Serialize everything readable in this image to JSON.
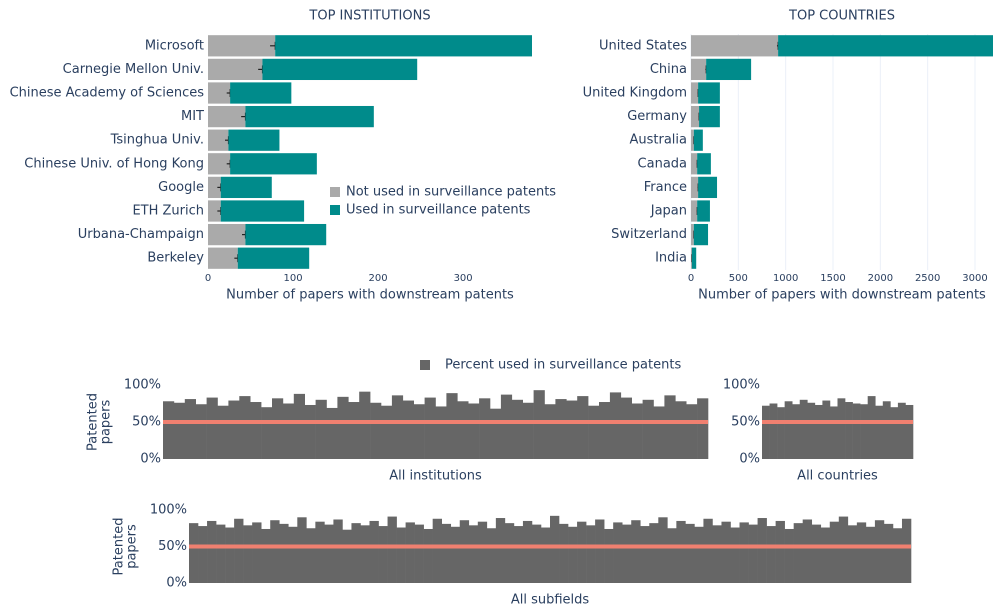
{
  "chart_data": [
    {
      "type": "hbar_stacked",
      "title": "TOP INSTITUTIONS",
      "xlabel": "Number of papers with downstream patents",
      "categories": [
        "Microsoft",
        "Carnegie Mellon Univ.",
        "Chinese Academy of Sciences",
        "MIT",
        "Tsinghua Univ.",
        "Chinese Univ. of Hong Kong",
        "Google",
        "ETH Zurich",
        "Urbana-Champaign",
        "Berkeley"
      ],
      "series": [
        {
          "name": "Not used in surveillance patents",
          "color": "#aaaaaa",
          "values": [
            79,
            64,
            26,
            44,
            24,
            26,
            15,
            15,
            44,
            35
          ],
          "errors": [
            6,
            5,
            4,
            5,
            4,
            4,
            4,
            4,
            4,
            4
          ]
        },
        {
          "name": "Used in surveillance patents",
          "color": "#008b8b",
          "values": [
            302,
            182,
            72,
            151,
            60,
            102,
            60,
            98,
            95,
            84
          ]
        }
      ],
      "xlim": [
        0,
        381
      ],
      "xticks": [
        0,
        100,
        200,
        300
      ],
      "grid": false
    },
    {
      "type": "hbar_stacked",
      "title": "TOP COUNTRIES",
      "xlabel": "Number of papers with downstream patents",
      "categories": [
        "United States",
        "China",
        "United Kingdom",
        "Germany",
        "Australia",
        "Canada",
        "France",
        "Japan",
        "Switzerland",
        "India"
      ],
      "series": [
        {
          "color": "#aaaaaa",
          "values": [
            920,
            160,
            75,
            85,
            30,
            65,
            75,
            65,
            30,
            10
          ],
          "errors": [
            12,
            8,
            5,
            5,
            3,
            4,
            5,
            4,
            3,
            2
          ]
        },
        {
          "color": "#008b8b",
          "values": [
            2270,
            475,
            230,
            220,
            95,
            145,
            200,
            135,
            150,
            45
          ]
        }
      ],
      "xlim": [
        0,
        3190
      ],
      "xticks": [
        0,
        500,
        1000,
        1500,
        2000,
        2500,
        3000
      ],
      "grid": true
    },
    {
      "type": "bar",
      "xlabel": "All institutions",
      "ylabel": [
        "Patented",
        "papers"
      ],
      "series": [
        {
          "name": "Percent used in surveillance patents",
          "color": "#666666",
          "values": [
            78,
            76,
            81,
            74,
            83,
            72,
            79,
            85,
            77,
            70,
            82,
            75,
            88,
            73,
            80,
            69,
            84,
            77,
            91,
            76,
            72,
            86,
            79,
            74,
            83,
            71,
            89,
            78,
            75,
            82,
            68,
            87,
            80,
            76,
            93,
            74,
            81,
            79,
            85,
            72,
            77,
            90,
            83,
            75,
            80,
            71,
            86,
            78,
            74,
            82
          ]
        }
      ],
      "reference": 50,
      "reference_color": "#f08070",
      "ylim": [
        0,
        100
      ],
      "yticks": [
        {
          "value": 0,
          "label": "0%"
        },
        {
          "value": 50,
          "label": "50%"
        },
        {
          "value": 100,
          "label": "100%"
        }
      ]
    },
    {
      "type": "bar",
      "xlabel": "All countries",
      "series": [
        {
          "color": "#666666",
          "values": [
            72,
            75,
            70,
            78,
            74,
            80,
            76,
            73,
            79,
            71,
            82,
            77,
            75,
            74,
            85,
            72,
            78,
            70,
            76,
            73
          ]
        }
      ],
      "reference": 50,
      "reference_color": "#f08070",
      "ylim": [
        0,
        100
      ],
      "yticks": [
        {
          "value": 0,
          "label": "0%"
        },
        {
          "value": 50,
          "label": "50%"
        },
        {
          "value": 100,
          "label": "100%"
        }
      ]
    },
    {
      "type": "bar",
      "xlabel": "All subfields",
      "ylabel": [
        "Patented",
        "papers"
      ],
      "series": [
        {
          "color": "#666666",
          "values": [
            82,
            78,
            85,
            80,
            76,
            88,
            79,
            83,
            74,
            86,
            81,
            77,
            90,
            75,
            84,
            80,
            87,
            73,
            82,
            79,
            85,
            78,
            91,
            76,
            83,
            80,
            74,
            88,
            81,
            77,
            86,
            79,
            84,
            75,
            89,
            82,
            78,
            85,
            80,
            76,
            92,
            81,
            77,
            84,
            79,
            87,
            74,
            83,
            80,
            86,
            78,
            82,
            90,
            75,
            85,
            81,
            77,
            88,
            79,
            84,
            76,
            83,
            80,
            89,
            78,
            85,
            74,
            82,
            87,
            80,
            76,
            84,
            91,
            79,
            83,
            77,
            86,
            81,
            75,
            88
          ]
        }
      ],
      "reference": 50,
      "reference_color": "#f08070",
      "ylim": [
        0,
        100
      ],
      "yticks": [
        {
          "value": 0,
          "label": "0%"
        },
        {
          "value": 50,
          "label": "50%"
        },
        {
          "value": 100,
          "label": "100%"
        }
      ]
    }
  ]
}
